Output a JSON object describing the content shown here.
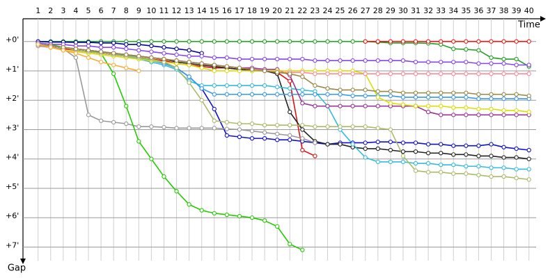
{
  "chart_data": {
    "type": "line",
    "x_label": "Time",
    "y_label": "Gap",
    "x": [
      1,
      2,
      3,
      4,
      5,
      6,
      7,
      8,
      9,
      10,
      11,
      12,
      13,
      14,
      15,
      16,
      17,
      18,
      19,
      20,
      21,
      22,
      23,
      24,
      25,
      26,
      27,
      28,
      29,
      30,
      31,
      32,
      33,
      34,
      35,
      36,
      37,
      38,
      39,
      40
    ],
    "xlim": [
      -0.2,
      40.9
    ],
    "xticks": [
      1,
      2,
      3,
      4,
      5,
      6,
      7,
      8,
      9,
      10,
      11,
      12,
      13,
      14,
      15,
      16,
      17,
      18,
      19,
      20,
      21,
      22,
      23,
      24,
      25,
      26,
      27,
      28,
      29,
      30,
      31,
      32,
      33,
      34,
      35,
      36,
      37,
      38,
      39,
      40
    ],
    "ylim": [
      -0.75,
      7.25
    ],
    "yticks": [
      {
        "value": 0,
        "label": "+0'"
      },
      {
        "value": 1,
        "label": "+1'"
      },
      {
        "value": 2,
        "label": "+2'"
      },
      {
        "value": 3,
        "label": "+3'"
      },
      {
        "value": 4,
        "label": "+4'"
      },
      {
        "value": 5,
        "label": "+5'"
      },
      {
        "value": 6,
        "label": "+6'"
      },
      {
        "value": 7,
        "label": "+7'"
      }
    ],
    "grid": true,
    "series": [
      {
        "color": "#22a022",
        "values": [
          0,
          0,
          0,
          0,
          0,
          0,
          0,
          0,
          0,
          0,
          0,
          0,
          0,
          0,
          0,
          0,
          0,
          0,
          0,
          0,
          0,
          0,
          0,
          0,
          0,
          0,
          0,
          0.02,
          0.05,
          0.05,
          0.05,
          0.06,
          0.1,
          0.25,
          0.27,
          0.3,
          0.55,
          0.6,
          0.6,
          0.85
        ]
      },
      {
        "color": "#ee1111",
        "values": [
          null,
          null,
          null,
          null,
          null,
          null,
          null,
          null,
          null,
          null,
          null,
          null,
          null,
          null,
          null,
          null,
          null,
          null,
          null,
          null,
          null,
          null,
          null,
          null,
          null,
          null,
          0,
          0,
          0,
          0,
          0,
          0,
          0,
          0,
          0,
          0,
          0,
          0,
          0,
          0
        ]
      },
      {
        "color": "#000099",
        "values": [
          0,
          0.02,
          0.02,
          0.03,
          0.03,
          0.05,
          0.05,
          0.1,
          0.1,
          0.15,
          0.2,
          0.25,
          0.3,
          0.4,
          null,
          null,
          null,
          null,
          null,
          null,
          null,
          null,
          null,
          null,
          null,
          null,
          null,
          null,
          null,
          null,
          null,
          null,
          null,
          null,
          null,
          null,
          null,
          null,
          null,
          null
        ]
      },
      {
        "color": "#1111cc",
        "values": [
          0.1,
          0.15,
          0.2,
          0.3,
          0.35,
          0.4,
          0.45,
          0.5,
          0.55,
          0.6,
          0.7,
          0.9,
          1.2,
          1.6,
          2.3,
          3.2,
          3.25,
          3.3,
          3.3,
          3.35,
          3.35,
          3.4,
          3.45,
          3.5,
          3.45,
          3.45,
          3.45,
          3.42,
          3.42,
          3.45,
          3.45,
          3.5,
          3.5,
          3.55,
          3.55,
          3.55,
          3.5,
          3.6,
          3.65,
          3.7
        ]
      },
      {
        "color": "#dd1111",
        "values": [
          0.15,
          0.2,
          0.25,
          0.3,
          0.35,
          0.4,
          0.45,
          0.5,
          0.55,
          0.6,
          0.65,
          0.75,
          0.8,
          0.85,
          0.9,
          0.9,
          0.95,
          0.98,
          1.0,
          1.05,
          1.35,
          3.7,
          3.9,
          null,
          null,
          null,
          null,
          null,
          null,
          null,
          null,
          null,
          null,
          null,
          null,
          null,
          null,
          null,
          null,
          null
        ]
      },
      {
        "color": "#222222",
        "values": [
          0.1,
          0.15,
          0.2,
          0.25,
          0.3,
          0.35,
          0.4,
          0.45,
          0.5,
          0.55,
          0.6,
          0.7,
          0.75,
          0.8,
          0.85,
          0.9,
          0.95,
          1.0,
          1.0,
          1.1,
          2.4,
          3.0,
          3.4,
          3.5,
          3.5,
          3.6,
          3.65,
          3.65,
          3.7,
          3.75,
          3.75,
          3.8,
          3.8,
          3.85,
          3.85,
          3.9,
          3.9,
          3.95,
          3.95,
          4.0
        ]
      },
      {
        "color": "#999999",
        "values": [
          0.15,
          0.2,
          0.25,
          0.55,
          2.5,
          2.7,
          2.75,
          2.8,
          2.9,
          2.9,
          2.92,
          2.95,
          2.95,
          2.95,
          2.95,
          2.98,
          3.0,
          3.05,
          3.1,
          3.15,
          3.2,
          3.3,
          3.45,
          null,
          null,
          null,
          null,
          null,
          null,
          null,
          null,
          null,
          null,
          null,
          null,
          null,
          null,
          null,
          null,
          null
        ]
      },
      {
        "color": "#22cc00",
        "values": [
          0.05,
          0.1,
          0.2,
          0.25,
          0.3,
          0.4,
          1.1,
          2.2,
          3.4,
          4.0,
          4.6,
          5.1,
          5.55,
          5.75,
          5.85,
          5.9,
          5.95,
          6.0,
          6.1,
          6.3,
          6.9,
          7.1,
          null,
          null,
          null,
          null,
          null,
          null,
          null,
          null,
          null,
          null,
          null,
          null,
          null,
          null,
          null,
          null,
          null,
          null
        ]
      },
      {
        "color": "#33bbdd",
        "values": [
          0.1,
          0.15,
          0.2,
          0.25,
          0.3,
          0.35,
          0.4,
          0.5,
          0.6,
          0.7,
          0.8,
          0.95,
          1.35,
          1.5,
          1.5,
          1.5,
          1.5,
          1.5,
          1.5,
          1.55,
          1.6,
          1.65,
          1.7,
          2.2,
          3.0,
          3.5,
          3.95,
          4.1,
          4.1,
          4.1,
          4.15,
          4.15,
          4.2,
          4.2,
          4.25,
          4.25,
          4.3,
          4.3,
          4.35,
          4.35
        ]
      },
      {
        "color": "#3399ee",
        "values": [
          0.1,
          0.15,
          0.2,
          0.25,
          0.3,
          0.35,
          0.4,
          0.45,
          0.55,
          0.65,
          0.75,
          0.9,
          1.2,
          1.6,
          1.8,
          1.8,
          1.8,
          1.8,
          1.8,
          1.8,
          1.8,
          1.8,
          1.8,
          1.8,
          1.8,
          1.85,
          1.85,
          1.85,
          1.85,
          1.9,
          1.9,
          1.9,
          1.9,
          1.9,
          1.9,
          1.95,
          1.95,
          1.95,
          1.95,
          1.95
        ]
      },
      {
        "color": "#993399",
        "values": [
          0.1,
          0.15,
          0.2,
          0.25,
          0.3,
          0.35,
          0.4,
          0.45,
          0.5,
          0.55,
          0.6,
          0.65,
          0.7,
          0.75,
          0.8,
          0.85,
          0.9,
          0.9,
          0.95,
          0.95,
          1.15,
          2.1,
          2.2,
          2.2,
          2.2,
          2.2,
          2.2,
          2.2,
          2.2,
          2.2,
          2.2,
          2.4,
          2.5,
          2.5,
          2.5,
          2.5,
          2.5,
          2.5,
          2.5,
          2.5
        ]
      },
      {
        "color": "#dddd00",
        "values": [
          0.1,
          0.2,
          0.3,
          0.35,
          0.4,
          0.45,
          0.5,
          0.55,
          0.6,
          0.65,
          0.7,
          0.75,
          0.8,
          0.9,
          1.0,
          1.0,
          1.0,
          1.0,
          1.0,
          1.0,
          1.0,
          1.0,
          1.0,
          1.0,
          1.0,
          1.0,
          1.1,
          1.9,
          2.1,
          2.15,
          2.2,
          2.2,
          2.2,
          2.25,
          2.25,
          2.3,
          2.3,
          2.35,
          2.35,
          2.4
        ]
      },
      {
        "color": "#aabb66",
        "values": [
          0.1,
          0.15,
          0.2,
          0.3,
          0.35,
          0.4,
          0.45,
          0.5,
          0.55,
          0.6,
          0.7,
          0.9,
          1.4,
          2.0,
          2.7,
          2.75,
          2.8,
          2.8,
          2.85,
          2.85,
          2.85,
          2.85,
          2.9,
          2.9,
          2.9,
          2.9,
          2.9,
          2.95,
          3.0,
          3.9,
          4.4,
          4.45,
          4.45,
          4.5,
          4.5,
          4.55,
          4.6,
          4.6,
          4.65,
          4.7
        ]
      },
      {
        "color": "#8844ee",
        "values": [
          0.05,
          0.1,
          0.1,
          0.15,
          0.15,
          0.2,
          0.2,
          0.25,
          0.3,
          0.35,
          0.4,
          0.45,
          0.5,
          0.5,
          0.55,
          0.55,
          0.6,
          0.6,
          0.6,
          0.6,
          0.6,
          0.6,
          0.65,
          0.65,
          0.65,
          0.65,
          0.65,
          0.65,
          0.65,
          0.65,
          0.7,
          0.7,
          0.7,
          0.7,
          0.7,
          0.75,
          0.75,
          0.75,
          0.8,
          0.8
        ]
      },
      {
        "color": "#ff8899",
        "values": [
          0.1,
          0.15,
          0.2,
          0.25,
          0.3,
          0.35,
          0.4,
          0.45,
          0.5,
          0.55,
          0.6,
          0.65,
          0.7,
          0.75,
          0.8,
          0.85,
          0.9,
          0.95,
          1.0,
          1.05,
          1.05,
          1.05,
          1.1,
          1.1,
          1.1,
          1.1,
          1.1,
          1.1,
          1.1,
          1.1,
          1.1,
          1.1,
          1.1,
          1.1,
          1.1,
          1.1,
          1.1,
          1.1,
          1.1,
          1.1
        ]
      },
      {
        "color": "#998844",
        "values": [
          0.1,
          0.15,
          0.2,
          0.25,
          0.3,
          0.35,
          0.4,
          0.45,
          0.5,
          0.55,
          0.6,
          0.65,
          0.7,
          0.75,
          0.8,
          0.85,
          0.9,
          0.95,
          1.0,
          1.05,
          1.1,
          1.2,
          1.5,
          1.6,
          1.65,
          1.65,
          1.65,
          1.7,
          1.7,
          1.75,
          1.75,
          1.75,
          1.75,
          1.75,
          1.75,
          1.8,
          1.8,
          1.8,
          1.8,
          1.85
        ]
      },
      {
        "color": "#ffaa33",
        "values": [
          0.1,
          0.2,
          0.3,
          0.4,
          0.55,
          0.7,
          0.8,
          0.9,
          1.0,
          null,
          null,
          null,
          null,
          null,
          null,
          null,
          null,
          null,
          null,
          null,
          null,
          null,
          null,
          null,
          null,
          null,
          null,
          null,
          null,
          null,
          null,
          null,
          null,
          null,
          null,
          null,
          null,
          null,
          null,
          null
        ]
      }
    ]
  }
}
